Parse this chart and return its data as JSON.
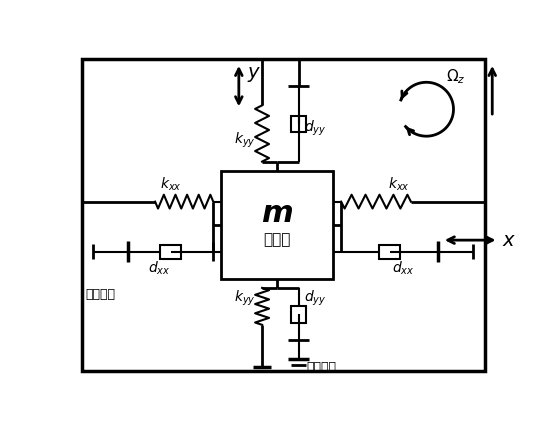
{
  "fig_width": 5.59,
  "fig_height": 4.29,
  "dpi": 100,
  "bg_color": "#ffffff",
  "line_color": "#000000",
  "mass_sublabel": "质量块",
  "cap_measure": "电容测量"
}
